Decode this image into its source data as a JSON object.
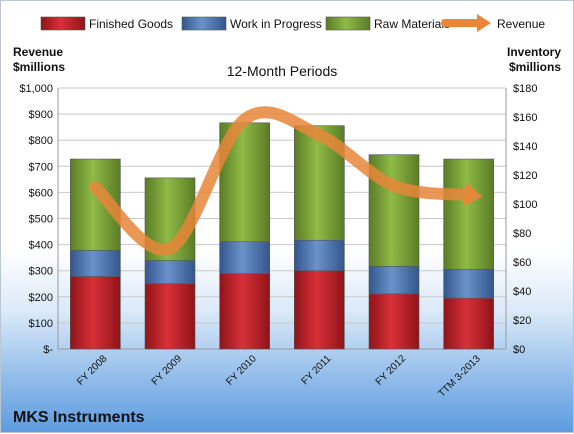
{
  "chart_data": {
    "type": "bar",
    "subtype": "stacked bar with line overlay",
    "title": "12-Month Periods",
    "company": "MKS Instruments",
    "categories": [
      "FY 2008",
      "FY 2009",
      "FY 2010",
      "FY 2011",
      "FY 2012",
      "TTM 3-2013"
    ],
    "left_axis": {
      "label": "Revenue $millions",
      "label_lines": [
        "Revenue",
        "$millions"
      ],
      "ylim": [
        0,
        1000
      ],
      "ticks": [
        "$-",
        "$100",
        "$200",
        "$300",
        "$400",
        "$500",
        "$600",
        "$700",
        "$800",
        "$900",
        "$1,000"
      ]
    },
    "right_axis": {
      "label": "Inventory $millions",
      "label_lines": [
        "Inventory",
        "$millions"
      ],
      "ylim": [
        0,
        180
      ],
      "ticks": [
        "$0",
        "$20",
        "$40",
        "$60",
        "$80",
        "$100",
        "$120",
        "$140",
        "$160",
        "$180"
      ]
    },
    "series": [
      {
        "name": "Finished Goods",
        "axis": "right",
        "kind": "bar",
        "color": "#c0242a",
        "values": [
          50,
          45,
          52,
          54,
          38,
          35
        ]
      },
      {
        "name": "Work in Progress",
        "axis": "right",
        "kind": "bar",
        "color": "#4f77b5",
        "values": [
          18,
          16,
          22,
          21,
          19,
          20
        ]
      },
      {
        "name": "Raw Materials",
        "axis": "right",
        "kind": "bar",
        "color": "#7fa83c",
        "values": [
          63,
          57,
          82,
          79,
          77,
          76
        ]
      },
      {
        "name": "Revenue",
        "axis": "left",
        "kind": "line",
        "color": "#e8863a",
        "values": [
          620,
          385,
          880,
          820,
          625,
          590
        ]
      }
    ],
    "legend_position": "top",
    "grid": true
  }
}
